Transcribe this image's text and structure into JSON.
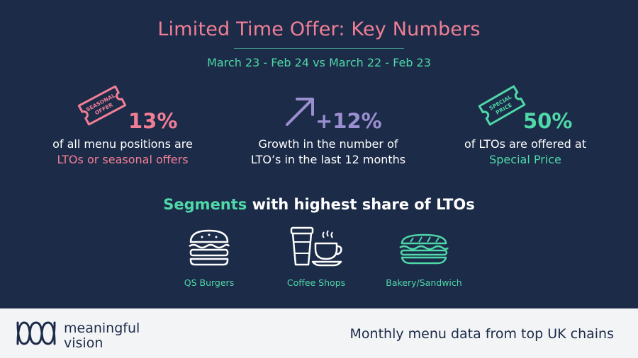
{
  "header": {
    "title": "Limited Time Offer: Key Numbers",
    "subtitle": "March 23 - Feb 24 vs March 22 - Feb 23"
  },
  "stats": [
    {
      "icon": "seasonal-offer-ticket-icon",
      "icon_text": [
        "SEASONAL",
        "OFFER"
      ],
      "value": "13%",
      "line1": "of all menu positions are",
      "line2": "LTOs or seasonal offers",
      "accent": "#f07f95"
    },
    {
      "icon": "growth-arrow-icon",
      "value": "+12%",
      "line1": "Growth in the number of",
      "line2": "LTO’s in the last 12 months",
      "accent": "#9b8fd0"
    },
    {
      "icon": "special-price-ticket-icon",
      "icon_text": [
        "SPECIAL",
        "PRICE"
      ],
      "value": "50%",
      "line1": "of LTOs are offered at",
      "line2": "Special Price",
      "accent": "#4fd8a8"
    }
  ],
  "segments_heading": {
    "highlight": "Segments",
    "rest": " with highest share of LTOs"
  },
  "segments": [
    {
      "icon": "burger-icon",
      "label": "QS Burgers"
    },
    {
      "icon": "coffee-cup-icon",
      "label": "Coffee Shops"
    },
    {
      "icon": "sandwich-icon",
      "label": "Bakery/Sandwich"
    }
  ],
  "footer": {
    "brand_line1": "meaningful",
    "brand_line2": "vision",
    "tagline": "Monthly menu data from top UK chains"
  },
  "colors": {
    "background": "#1c2b48",
    "pink": "#f07f95",
    "green": "#4fd8a8",
    "purple": "#9b8fd0",
    "footer": "#f3f4f6"
  }
}
